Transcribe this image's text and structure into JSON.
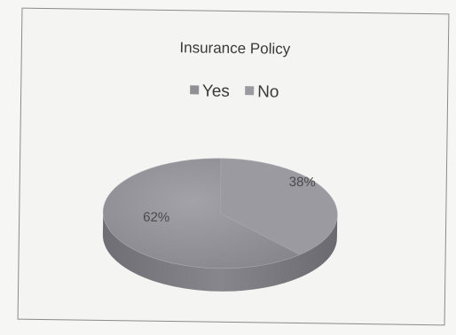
{
  "chart_data": {
    "type": "pie",
    "title": "Insurance Policy",
    "categories": [
      "Yes",
      "No"
    ],
    "values": [
      62,
      38
    ],
    "labels": [
      "62%",
      "38%"
    ],
    "colors": [
      "#8f8f95",
      "#9a9aa0"
    ],
    "legend": "top",
    "style": "3d"
  }
}
